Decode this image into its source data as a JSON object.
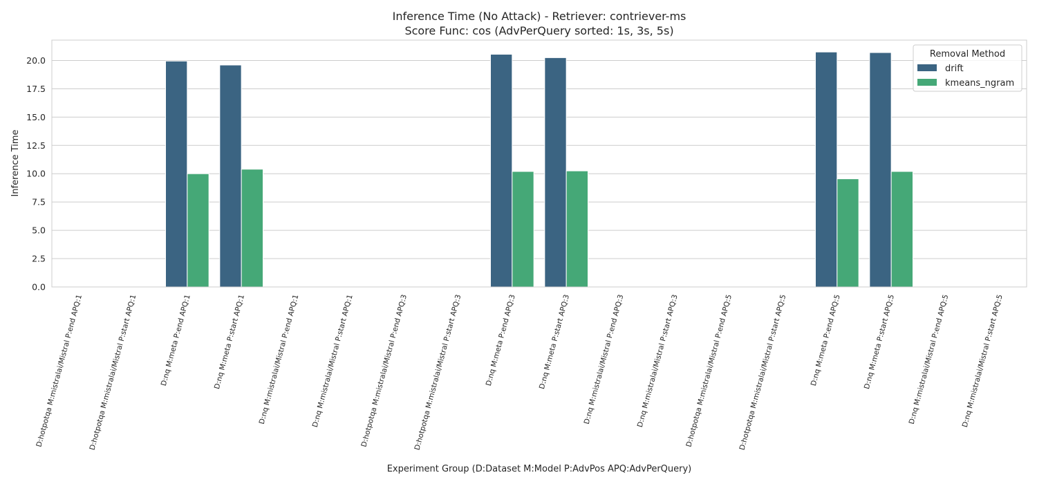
{
  "chart_data": {
    "type": "bar",
    "title": "Inference Time (No Attack) - Retriever: contriever-ms",
    "subtitle": "Score Func: cos (AdvPerQuery sorted: 1s, 3s, 5s)",
    "xlabel": "Experiment Group (D:Dataset M:Model P:AdvPos APQ:AdvPerQuery)",
    "ylabel": "Inference Time",
    "ylim": [
      0,
      21.8
    ],
    "yticks": [
      "0.0",
      "2.5",
      "5.0",
      "7.5",
      "10.0",
      "12.5",
      "15.0",
      "17.5",
      "20.0"
    ],
    "grid": true,
    "legend": {
      "title": "Removal Method",
      "position": "top-right"
    },
    "categories": [
      "D:hotpotqa M:mistralai/Mistral P:end APQ:1",
      "D:hotpotqa M:mistralai/Mistral P:start APQ:1",
      "D:nq M:meta P:end APQ:1",
      "D:nq M:meta P:start APQ:1",
      "D:nq M:mistralai/Mistral P:end APQ:1",
      "D:nq M:mistralai/Mistral P:start APQ:1",
      "D:hotpotqa M:mistralai/Mistral P:end APQ:3",
      "D:hotpotqa M:mistralai/Mistral P:start APQ:3",
      "D:nq M:meta P:end APQ:3",
      "D:nq M:meta P:start APQ:3",
      "D:nq M:mistralai/Mistral P:end APQ:3",
      "D:nq M:mistralai/Mistral P:start APQ:3",
      "D:hotpotqa M:mistralai/Mistral P:end APQ:5",
      "D:hotpotqa M:mistralai/Mistral P:start APQ:5",
      "D:nq M:meta P:end APQ:5",
      "D:nq M:meta P:start APQ:5",
      "D:nq M:mistralai/Mistral P:end APQ:5",
      "D:nq M:mistralai/Mistral P:start APQ:5"
    ],
    "series": [
      {
        "name": "drift",
        "color": "#3b6482",
        "values": [
          null,
          null,
          19.95,
          19.6,
          null,
          null,
          null,
          null,
          20.55,
          20.25,
          null,
          null,
          null,
          null,
          20.75,
          20.7,
          null,
          null
        ]
      },
      {
        "name": "kmeans_ngram",
        "color": "#45a877",
        "values": [
          null,
          null,
          10.0,
          10.4,
          null,
          null,
          null,
          null,
          10.2,
          10.25,
          null,
          null,
          null,
          null,
          9.55,
          10.2,
          null,
          null
        ]
      }
    ]
  }
}
